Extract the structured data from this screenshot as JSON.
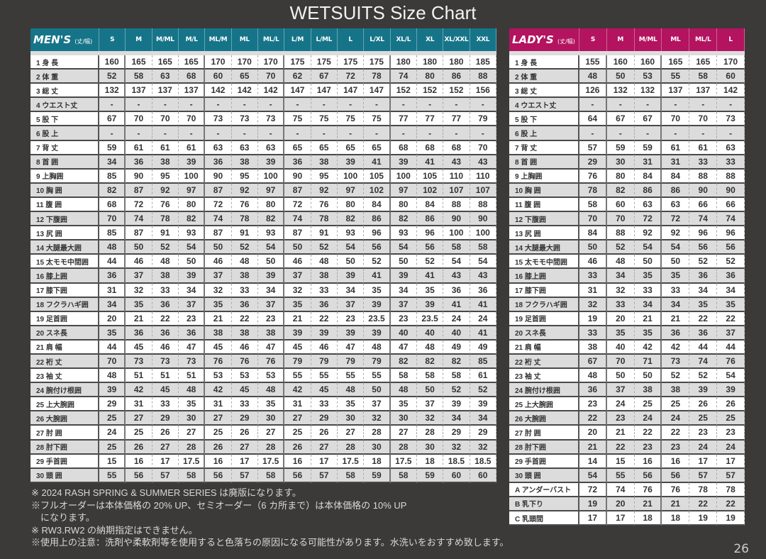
{
  "title": "WETSUITS Size Chart",
  "page_number": "26",
  "colors": {
    "mens_header": "#167489",
    "ladys_header": "#b3135f",
    "background": "#3b3a39"
  },
  "mens": {
    "label": "MEN'S",
    "unit_note": "(丈/幅)",
    "sizes": [
      "S",
      "M",
      "M/ML",
      "M/L",
      "ML/M",
      "ML",
      "ML/L",
      "L/M",
      "L/ML",
      "L",
      "L/XL",
      "XL/L",
      "XL",
      "XL/XXL",
      "XXL"
    ],
    "rows": [
      {
        "label": "1 身 長",
        "values": [
          "160",
          "165",
          "165",
          "165",
          "170",
          "170",
          "170",
          "175",
          "175",
          "175",
          "175",
          "180",
          "180",
          "180",
          "185"
        ]
      },
      {
        "label": "2 体 重",
        "values": [
          "52",
          "58",
          "63",
          "68",
          "60",
          "65",
          "70",
          "62",
          "67",
          "72",
          "78",
          "74",
          "80",
          "86",
          "88"
        ]
      },
      {
        "label": "3 総 丈",
        "values": [
          "132",
          "137",
          "137",
          "137",
          "142",
          "142",
          "142",
          "147",
          "147",
          "147",
          "147",
          "152",
          "152",
          "152",
          "156"
        ]
      },
      {
        "label": "4 ウエスト丈",
        "values": [
          "-",
          "-",
          "-",
          "-",
          "-",
          "-",
          "-",
          "-",
          "-",
          "-",
          "-",
          "-",
          "-",
          "-",
          "-"
        ]
      },
      {
        "label": "5 股 下",
        "values": [
          "67",
          "70",
          "70",
          "70",
          "73",
          "73",
          "73",
          "75",
          "75",
          "75",
          "75",
          "77",
          "77",
          "77",
          "79"
        ]
      },
      {
        "label": "6 股 上",
        "values": [
          "-",
          "-",
          "-",
          "-",
          "-",
          "-",
          "-",
          "-",
          "-",
          "-",
          "-",
          "-",
          "-",
          "-",
          "-"
        ]
      },
      {
        "label": "7 背 丈",
        "values": [
          "59",
          "61",
          "61",
          "61",
          "63",
          "63",
          "63",
          "65",
          "65",
          "65",
          "65",
          "68",
          "68",
          "68",
          "70"
        ]
      },
      {
        "label": "8 首 囲",
        "values": [
          "34",
          "36",
          "38",
          "39",
          "36",
          "38",
          "39",
          "36",
          "38",
          "39",
          "41",
          "39",
          "41",
          "43",
          "43"
        ]
      },
      {
        "label": "9 上胸囲",
        "values": [
          "85",
          "90",
          "95",
          "100",
          "90",
          "95",
          "100",
          "90",
          "95",
          "100",
          "105",
          "100",
          "105",
          "110",
          "110"
        ]
      },
      {
        "label": "10 胸 囲",
        "values": [
          "82",
          "87",
          "92",
          "97",
          "87",
          "92",
          "97",
          "87",
          "92",
          "97",
          "102",
          "97",
          "102",
          "107",
          "107"
        ]
      },
      {
        "label": "11 腹 囲",
        "values": [
          "68",
          "72",
          "76",
          "80",
          "72",
          "76",
          "80",
          "72",
          "76",
          "80",
          "84",
          "80",
          "84",
          "88",
          "88"
        ]
      },
      {
        "label": "12 下腹囲",
        "values": [
          "70",
          "74",
          "78",
          "82",
          "74",
          "78",
          "82",
          "74",
          "78",
          "82",
          "86",
          "82",
          "86",
          "90",
          "90"
        ]
      },
      {
        "label": "13 尻 囲",
        "values": [
          "85",
          "87",
          "91",
          "93",
          "87",
          "91",
          "93",
          "87",
          "91",
          "93",
          "96",
          "93",
          "96",
          "100",
          "100"
        ]
      },
      {
        "label": "14 大腿最大囲",
        "values": [
          "48",
          "50",
          "52",
          "54",
          "50",
          "52",
          "54",
          "50",
          "52",
          "54",
          "56",
          "54",
          "56",
          "58",
          "58"
        ]
      },
      {
        "label": "15 太モモ中間囲",
        "values": [
          "44",
          "46",
          "48",
          "50",
          "46",
          "48",
          "50",
          "46",
          "48",
          "50",
          "52",
          "50",
          "52",
          "54",
          "54"
        ]
      },
      {
        "label": "16 膝上囲",
        "values": [
          "36",
          "37",
          "38",
          "39",
          "37",
          "38",
          "39",
          "37",
          "38",
          "39",
          "41",
          "39",
          "41",
          "43",
          "43"
        ]
      },
      {
        "label": "17 膝下囲",
        "values": [
          "31",
          "32",
          "33",
          "34",
          "32",
          "33",
          "34",
          "32",
          "33",
          "34",
          "35",
          "34",
          "35",
          "36",
          "36"
        ]
      },
      {
        "label": "18 フクラハギ囲",
        "values": [
          "34",
          "35",
          "36",
          "37",
          "35",
          "36",
          "37",
          "35",
          "36",
          "37",
          "39",
          "37",
          "39",
          "41",
          "41"
        ]
      },
      {
        "label": "19 足首囲",
        "values": [
          "20",
          "21",
          "22",
          "23",
          "21",
          "22",
          "23",
          "21",
          "22",
          "23",
          "23.5",
          "23",
          "23.5",
          "24",
          "24"
        ]
      },
      {
        "label": "20 スネ長",
        "values": [
          "35",
          "36",
          "36",
          "36",
          "38",
          "38",
          "38",
          "39",
          "39",
          "39",
          "39",
          "40",
          "40",
          "40",
          "41"
        ]
      },
      {
        "label": "21 肩 幅",
        "values": [
          "44",
          "45",
          "46",
          "47",
          "45",
          "46",
          "47",
          "45",
          "46",
          "47",
          "48",
          "47",
          "48",
          "49",
          "49"
        ]
      },
      {
        "label": "22 裄 丈",
        "values": [
          "70",
          "73",
          "73",
          "73",
          "76",
          "76",
          "76",
          "79",
          "79",
          "79",
          "79",
          "82",
          "82",
          "82",
          "85"
        ]
      },
      {
        "label": "23 袖 丈",
        "values": [
          "48",
          "51",
          "51",
          "51",
          "53",
          "53",
          "53",
          "55",
          "55",
          "55",
          "55",
          "58",
          "58",
          "58",
          "61"
        ]
      },
      {
        "label": "24 腕付け根囲",
        "values": [
          "39",
          "42",
          "45",
          "48",
          "42",
          "45",
          "48",
          "42",
          "45",
          "48",
          "50",
          "48",
          "50",
          "52",
          "52"
        ]
      },
      {
        "label": "25 上大腕囲",
        "values": [
          "29",
          "31",
          "33",
          "35",
          "31",
          "33",
          "35",
          "31",
          "33",
          "35",
          "37",
          "35",
          "37",
          "39",
          "39"
        ]
      },
      {
        "label": "26 大腕囲",
        "values": [
          "25",
          "27",
          "29",
          "30",
          "27",
          "29",
          "30",
          "27",
          "29",
          "30",
          "32",
          "30",
          "32",
          "34",
          "34"
        ]
      },
      {
        "label": "27 肘 囲",
        "values": [
          "24",
          "25",
          "26",
          "27",
          "25",
          "26",
          "27",
          "25",
          "26",
          "27",
          "28",
          "27",
          "28",
          "29",
          "29"
        ]
      },
      {
        "label": "28 肘下囲",
        "values": [
          "25",
          "26",
          "27",
          "28",
          "26",
          "27",
          "28",
          "26",
          "27",
          "28",
          "30",
          "28",
          "30",
          "32",
          "32"
        ]
      },
      {
        "label": "29 手首囲",
        "values": [
          "15",
          "16",
          "17",
          "17.5",
          "16",
          "17",
          "17.5",
          "16",
          "17",
          "17.5",
          "18",
          "17.5",
          "18",
          "18.5",
          "18.5"
        ]
      },
      {
        "label": "30 頭 囲",
        "values": [
          "55",
          "56",
          "57",
          "58",
          "56",
          "57",
          "58",
          "56",
          "57",
          "58",
          "59",
          "58",
          "59",
          "60",
          "60"
        ]
      }
    ]
  },
  "ladys": {
    "label": "LADY'S",
    "unit_note": "(丈/幅)",
    "sizes": [
      "S",
      "M",
      "M/ML",
      "ML",
      "ML/L",
      "L"
    ],
    "rows": [
      {
        "label": "1 身 長",
        "values": [
          "155",
          "160",
          "160",
          "165",
          "165",
          "170"
        ]
      },
      {
        "label": "2 体 重",
        "values": [
          "48",
          "50",
          "53",
          "55",
          "58",
          "60"
        ]
      },
      {
        "label": "3 総 丈",
        "values": [
          "126",
          "132",
          "132",
          "137",
          "137",
          "142"
        ]
      },
      {
        "label": "4 ウエスト丈",
        "values": [
          "-",
          "-",
          "-",
          "-",
          "-",
          "-"
        ]
      },
      {
        "label": "5 股 下",
        "values": [
          "64",
          "67",
          "67",
          "70",
          "70",
          "73"
        ]
      },
      {
        "label": "6 股 上",
        "values": [
          "-",
          "-",
          "-",
          "-",
          "-",
          "-"
        ]
      },
      {
        "label": "7 背 丈",
        "values": [
          "57",
          "59",
          "59",
          "61",
          "61",
          "63"
        ]
      },
      {
        "label": "8 首 囲",
        "values": [
          "29",
          "30",
          "31",
          "31",
          "33",
          "33"
        ]
      },
      {
        "label": "9 上胸囲",
        "values": [
          "76",
          "80",
          "84",
          "84",
          "88",
          "88"
        ]
      },
      {
        "label": "10 胸 囲",
        "values": [
          "78",
          "82",
          "86",
          "86",
          "90",
          "90"
        ]
      },
      {
        "label": "11 腹 囲",
        "values": [
          "58",
          "60",
          "63",
          "63",
          "66",
          "66"
        ]
      },
      {
        "label": "12 下腹囲",
        "values": [
          "70",
          "70",
          "72",
          "72",
          "74",
          "74"
        ]
      },
      {
        "label": "13 尻 囲",
        "values": [
          "84",
          "88",
          "92",
          "92",
          "96",
          "96"
        ]
      },
      {
        "label": "14 大腿最大囲",
        "values": [
          "50",
          "52",
          "54",
          "54",
          "56",
          "56"
        ]
      },
      {
        "label": "15 太モモ中間囲",
        "values": [
          "46",
          "48",
          "50",
          "50",
          "52",
          "52"
        ]
      },
      {
        "label": "16 膝上囲",
        "values": [
          "33",
          "34",
          "35",
          "35",
          "36",
          "36"
        ]
      },
      {
        "label": "17 膝下囲",
        "values": [
          "31",
          "32",
          "33",
          "33",
          "34",
          "34"
        ]
      },
      {
        "label": "18 フクラハギ囲",
        "values": [
          "32",
          "33",
          "34",
          "34",
          "35",
          "35"
        ]
      },
      {
        "label": "19 足首囲",
        "values": [
          "19",
          "20",
          "21",
          "21",
          "22",
          "22"
        ]
      },
      {
        "label": "20 スネ長",
        "values": [
          "33",
          "35",
          "35",
          "36",
          "36",
          "37"
        ]
      },
      {
        "label": "21 肩 幅",
        "values": [
          "38",
          "40",
          "42",
          "42",
          "44",
          "44"
        ]
      },
      {
        "label": "22 裄 丈",
        "values": [
          "67",
          "70",
          "71",
          "73",
          "74",
          "76"
        ]
      },
      {
        "label": "23 袖 丈",
        "values": [
          "48",
          "50",
          "50",
          "52",
          "52",
          "54"
        ]
      },
      {
        "label": "24 腕付け根囲",
        "values": [
          "36",
          "37",
          "38",
          "38",
          "39",
          "39"
        ]
      },
      {
        "label": "25 上大腕囲",
        "values": [
          "23",
          "24",
          "25",
          "25",
          "26",
          "26"
        ]
      },
      {
        "label": "26 大腕囲",
        "values": [
          "22",
          "23",
          "24",
          "24",
          "25",
          "25"
        ]
      },
      {
        "label": "27 肘 囲",
        "values": [
          "20",
          "21",
          "22",
          "22",
          "23",
          "23"
        ]
      },
      {
        "label": "28 肘下囲",
        "values": [
          "21",
          "22",
          "23",
          "23",
          "24",
          "24"
        ]
      },
      {
        "label": "29 手首囲",
        "values": [
          "14",
          "15",
          "16",
          "16",
          "17",
          "17"
        ]
      },
      {
        "label": "30 頭 囲",
        "values": [
          "54",
          "55",
          "56",
          "56",
          "57",
          "57"
        ]
      },
      {
        "label": "A アンダーバスト",
        "values": [
          "72",
          "74",
          "76",
          "76",
          "78",
          "78"
        ]
      },
      {
        "label": "B 乳下り",
        "values": [
          "19",
          "20",
          "21",
          "21",
          "22",
          "22"
        ]
      },
      {
        "label": "C 乳頭間",
        "values": [
          "17",
          "17",
          "18",
          "18",
          "19",
          "19"
        ]
      }
    ]
  },
  "notes": [
    "※ 2024 RASH SPRING & SUMMER SERIES は廃版になります。",
    "※フルオーダーは本体価格の 20% UP、セミオーダー（6 カ所まで）は本体価格の 10% UP",
    "　になります。",
    "※ RW3.RW2 の納期指定はできません。",
    "※使用上の注意：洗剤や柔軟剤等を使用すると色落ちの原因になる可能性があります。水洗いをおすすめ致します。"
  ]
}
